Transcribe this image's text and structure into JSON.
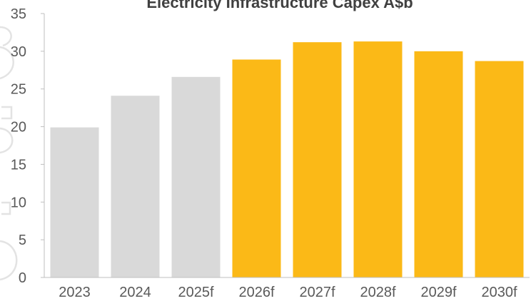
{
  "chart_data": {
    "type": "bar",
    "title": "Electricity Infrastructure Capex A$b",
    "categories": [
      "2023",
      "2024",
      "2025f",
      "2026f",
      "2027f",
      "2028f",
      "2029f",
      "2030f"
    ],
    "values": [
      19.9,
      24.1,
      26.6,
      28.9,
      31.2,
      31.3,
      30.0,
      28.7
    ],
    "bar_colors": [
      "#d9d9d9",
      "#d9d9d9",
      "#d9d9d9",
      "#fbb917",
      "#fbb917",
      "#fbb917",
      "#fbb917",
      "#fbb917"
    ],
    "ylim": [
      0,
      35
    ],
    "yticks": [
      0,
      5,
      10,
      15,
      20,
      25,
      30,
      35
    ],
    "xlabel": "",
    "ylabel": "",
    "grid": false,
    "legend": "none"
  }
}
